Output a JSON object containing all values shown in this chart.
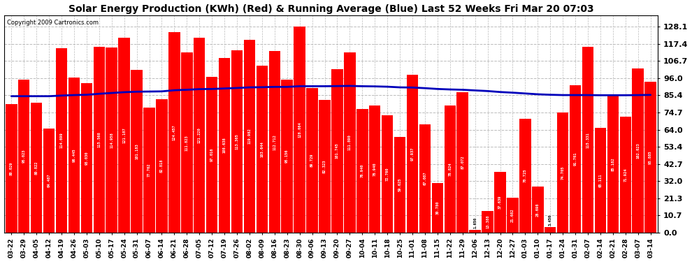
{
  "title": "Solar Energy Production (KWh) (Red) & Running Average (Blue) Last 52 Weeks Fri Mar 20 07:03",
  "copyright": "Copyright 2009 Cartronics.com",
  "bar_color": "#ff0000",
  "avg_line_color": "#0000bb",
  "background_color": "#ffffff",
  "grid_color": "#bbbbbb",
  "ytick_values": [
    0.0,
    10.7,
    21.3,
    32.0,
    42.7,
    53.4,
    64.0,
    74.7,
    85.4,
    96.0,
    106.7,
    117.4,
    128.1
  ],
  "ylim": [
    0,
    135
  ],
  "categories": [
    "03-22",
    "03-29",
    "04-05",
    "04-12",
    "04-19",
    "04-26",
    "05-03",
    "05-10",
    "05-17",
    "05-24",
    "05-31",
    "06-07",
    "06-14",
    "06-21",
    "06-28",
    "07-05",
    "07-12",
    "07-19",
    "07-26",
    "08-02",
    "08-09",
    "08-16",
    "08-23",
    "08-30",
    "09-06",
    "09-13",
    "09-20",
    "09-27",
    "10-04",
    "10-11",
    "10-18",
    "10-25",
    "11-01",
    "11-08",
    "11-15",
    "11-22",
    "11-29",
    "12-06",
    "12-13",
    "12-20",
    "12-27",
    "01-03",
    "01-10",
    "01-17",
    "01-24",
    "01-31",
    "02-07",
    "02-14",
    "02-21",
    "02-28",
    "03-07",
    "03-14"
  ],
  "values": [
    80.029,
    95.023,
    80.822,
    64.487,
    114.699,
    96.445,
    93.03,
    115.568,
    114.958,
    121.107,
    101.183,
    77.762,
    82.818,
    124.457,
    111.823,
    121.22,
    97.016,
    108.638,
    113.365,
    119.982,
    103.644,
    112.712,
    95.156,
    128.064,
    89.729,
    82.323,
    101.745,
    111.89,
    76.94,
    78.94,
    72.76,
    59.625,
    97.937,
    67.087,
    30.78,
    78.824,
    87.072,
    1.65,
    13.388,
    37.639,
    21.682,
    70.725,
    28.698,
    3.45,
    74.705,
    91.761,
    115.331,
    65.111,
    85.182,
    71.924,
    102.023,
    93.885
  ],
  "bar_values_labels": [
    "80.029",
    "95.023",
    "80.822",
    "64.487",
    "114.699",
    "96.445",
    "93.030",
    "115.568",
    "114.958",
    "121.107",
    "101.183",
    "77.762",
    "82.818",
    "124.457",
    "111.823",
    "121.220",
    "97.016",
    "108.638",
    "113.365",
    "119.982",
    "103.644",
    "112.712",
    "95.156",
    "128.064",
    "89.729",
    "82.323",
    "101.745",
    "111.890",
    "76.940",
    "78.940",
    "72.760",
    "59.625",
    "97.937",
    "67.087",
    "30.780",
    "78.824",
    "87.072",
    "1.650",
    "13.388",
    "37.639",
    "21.682",
    "70.725",
    "28.698",
    "3.450",
    "74.705",
    "91.761",
    "115.331",
    "65.111",
    "85.182",
    "71.924",
    "102.023",
    "93.885"
  ],
  "running_avg": [
    84.8,
    84.8,
    84.8,
    84.8,
    85.2,
    85.5,
    85.7,
    86.3,
    86.8,
    87.3,
    87.6,
    87.7,
    87.8,
    88.5,
    88.8,
    89.2,
    89.3,
    89.6,
    89.9,
    90.3,
    90.4,
    90.6,
    90.6,
    91.0,
    91.0,
    91.0,
    91.1,
    91.2,
    91.0,
    90.9,
    90.7,
    90.3,
    90.2,
    89.8,
    89.3,
    89.0,
    88.8,
    88.4,
    88.0,
    87.4,
    87.0,
    86.5,
    86.0,
    85.7,
    85.5,
    85.5,
    85.5,
    85.4,
    85.4,
    85.4,
    85.5,
    85.6
  ]
}
